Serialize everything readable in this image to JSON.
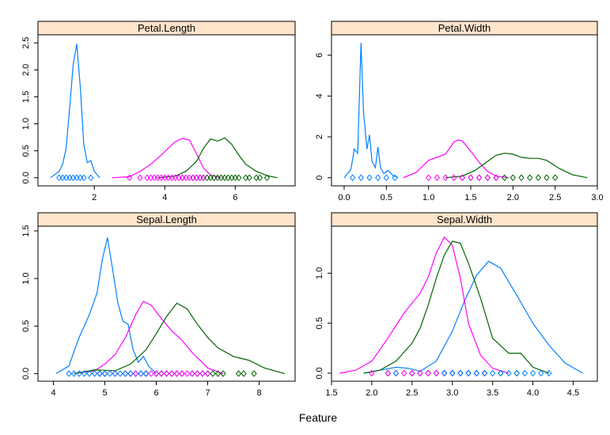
{
  "xlabel": "Feature",
  "colors": {
    "setosa": "#0080ff",
    "versicolor": "#ff00ff",
    "virginica": "#006400",
    "strip_bg": "#ffe5cc"
  },
  "chart_data": [
    {
      "type": "line",
      "title": "Petal.Length",
      "xlim": [
        0.4,
        7.7
      ],
      "ylim": [
        -0.15,
        2.65
      ],
      "xticks": [
        2,
        4,
        6
      ],
      "yticks": [
        0.0,
        0.5,
        1.0,
        1.5,
        2.0,
        2.5
      ],
      "series": [
        {
          "key": "setosa",
          "x": [
            0.75,
            1.0,
            1.1,
            1.2,
            1.3,
            1.4,
            1.5,
            1.6,
            1.7,
            1.8,
            1.9,
            2.0,
            2.15
          ],
          "y": [
            0.0,
            0.12,
            0.25,
            0.55,
            1.3,
            2.1,
            2.48,
            1.7,
            0.62,
            0.28,
            0.32,
            0.12,
            0.0
          ]
        },
        {
          "key": "versicolor",
          "x": [
            2.5,
            3.0,
            3.3,
            3.6,
            3.9,
            4.1,
            4.3,
            4.5,
            4.7,
            4.9,
            5.1,
            5.3,
            5.6
          ],
          "y": [
            0.0,
            0.02,
            0.12,
            0.25,
            0.42,
            0.55,
            0.67,
            0.73,
            0.7,
            0.45,
            0.18,
            0.05,
            0.0
          ]
        },
        {
          "key": "virginica",
          "x": [
            3.8,
            4.3,
            4.6,
            4.9,
            5.1,
            5.3,
            5.5,
            5.7,
            5.9,
            6.1,
            6.3,
            6.6,
            6.9,
            7.2
          ],
          "y": [
            0.0,
            0.03,
            0.12,
            0.3,
            0.55,
            0.72,
            0.68,
            0.74,
            0.62,
            0.42,
            0.25,
            0.12,
            0.04,
            0.0
          ]
        }
      ],
      "points": {
        "setosa": [
          1.0,
          1.1,
          1.2,
          1.3,
          1.4,
          1.5,
          1.6,
          1.7,
          1.9
        ],
        "versicolor": [
          3.0,
          3.3,
          3.5,
          3.6,
          3.7,
          3.8,
          3.9,
          4.0,
          4.1,
          4.2,
          4.3,
          4.4,
          4.5,
          4.6,
          4.7,
          4.8,
          4.9,
          5.0,
          5.1
        ],
        "virginica": [
          4.5,
          4.8,
          4.9,
          5.0,
          5.1,
          5.2,
          5.3,
          5.4,
          5.5,
          5.6,
          5.7,
          5.8,
          5.9,
          6.0,
          6.1,
          6.3,
          6.4,
          6.6,
          6.7,
          6.9
        ]
      }
    },
    {
      "type": "line",
      "title": "Petal.Width",
      "xlim": [
        -0.15,
        3.0
      ],
      "ylim": [
        -0.4,
        7.0
      ],
      "xticks": [
        0.0,
        0.5,
        1.0,
        1.5,
        2.0,
        2.5,
        3.0
      ],
      "yticks": [
        0,
        2,
        4,
        6
      ],
      "series": [
        {
          "key": "setosa",
          "x": [
            0.0,
            0.08,
            0.12,
            0.16,
            0.2,
            0.23,
            0.27,
            0.3,
            0.33,
            0.37,
            0.4,
            0.43,
            0.47,
            0.52,
            0.58,
            0.64
          ],
          "y": [
            0.0,
            0.4,
            1.4,
            1.2,
            6.6,
            3.2,
            1.4,
            2.1,
            0.8,
            0.5,
            1.5,
            0.5,
            0.2,
            0.35,
            0.1,
            0.0
          ]
        },
        {
          "key": "versicolor",
          "x": [
            0.7,
            0.85,
            1.0,
            1.1,
            1.2,
            1.3,
            1.35,
            1.4,
            1.5,
            1.6,
            1.7,
            1.8,
            1.95
          ],
          "y": [
            0.0,
            0.25,
            0.85,
            1.0,
            1.15,
            1.75,
            1.85,
            1.8,
            1.3,
            0.75,
            0.3,
            0.08,
            0.0
          ]
        },
        {
          "key": "virginica",
          "x": [
            1.2,
            1.4,
            1.55,
            1.7,
            1.8,
            1.9,
            2.0,
            2.1,
            2.2,
            2.3,
            2.4,
            2.55,
            2.7,
            2.88
          ],
          "y": [
            0.0,
            0.08,
            0.35,
            0.8,
            1.1,
            1.2,
            1.15,
            1.0,
            0.95,
            0.95,
            0.85,
            0.45,
            0.15,
            0.0
          ]
        }
      ],
      "points": {
        "setosa": [
          0.1,
          0.2,
          0.3,
          0.4,
          0.5,
          0.6
        ],
        "versicolor": [
          1.0,
          1.1,
          1.2,
          1.3,
          1.4,
          1.5,
          1.6,
          1.7,
          1.8
        ],
        "virginica": [
          1.4,
          1.5,
          1.6,
          1.7,
          1.8,
          1.9,
          2.0,
          2.1,
          2.2,
          2.3,
          2.4,
          2.5
        ]
      }
    },
    {
      "type": "line",
      "title": "Sepal.Length",
      "xlim": [
        3.7,
        8.7
      ],
      "ylim": [
        -0.08,
        1.55
      ],
      "xticks": [
        4,
        5,
        6,
        7,
        8
      ],
      "yticks": [
        0.0,
        0.5,
        1.0,
        1.5
      ],
      "series": [
        {
          "key": "setosa",
          "x": [
            4.05,
            4.3,
            4.5,
            4.7,
            4.85,
            4.95,
            5.05,
            5.15,
            5.25,
            5.35,
            5.45,
            5.55,
            5.65,
            5.75,
            5.85,
            6.0
          ],
          "y": [
            0.0,
            0.08,
            0.38,
            0.62,
            0.85,
            1.2,
            1.43,
            1.1,
            0.75,
            0.55,
            0.52,
            0.25,
            0.12,
            0.18,
            0.08,
            0.0
          ]
        },
        {
          "key": "versicolor",
          "x": [
            4.4,
            4.8,
            5.0,
            5.2,
            5.4,
            5.6,
            5.75,
            5.9,
            6.1,
            6.3,
            6.5,
            6.7,
            7.0,
            7.3
          ],
          "y": [
            0.0,
            0.03,
            0.1,
            0.2,
            0.38,
            0.62,
            0.76,
            0.72,
            0.58,
            0.45,
            0.35,
            0.22,
            0.06,
            0.0
          ]
        },
        {
          "key": "virginica",
          "x": [
            4.4,
            4.8,
            5.2,
            5.5,
            5.8,
            6.0,
            6.2,
            6.4,
            6.6,
            6.8,
            7.0,
            7.2,
            7.5,
            7.8,
            8.1,
            8.5
          ],
          "y": [
            0.0,
            0.04,
            0.03,
            0.1,
            0.25,
            0.42,
            0.6,
            0.74,
            0.68,
            0.52,
            0.38,
            0.27,
            0.18,
            0.14,
            0.06,
            0.0
          ]
        }
      ],
      "points": {
        "setosa": [
          4.3,
          4.4,
          4.5,
          4.6,
          4.7,
          4.8,
          4.9,
          5.0,
          5.1,
          5.2,
          5.3,
          5.4,
          5.5,
          5.7,
          5.8
        ],
        "versicolor": [
          4.9,
          5.0,
          5.2,
          5.4,
          5.5,
          5.6,
          5.7,
          5.8,
          5.9,
          6.0,
          6.1,
          6.2,
          6.3,
          6.4,
          6.5,
          6.6,
          6.7,
          6.8,
          6.9,
          7.0
        ],
        "virginica": [
          4.9,
          5.6,
          5.8,
          6.0,
          6.1,
          6.2,
          6.3,
          6.4,
          6.5,
          6.7,
          6.8,
          6.9,
          7.0,
          7.1,
          7.2,
          7.3,
          7.6,
          7.7,
          7.9
        ]
      }
    },
    {
      "type": "line",
      "title": "Sepal.Width",
      "xlim": [
        1.5,
        4.8
      ],
      "ylim": [
        -0.08,
        1.47
      ],
      "xticks": [
        1.5,
        2.0,
        2.5,
        3.0,
        3.5,
        4.0,
        4.5
      ],
      "yticks": [
        0.0,
        0.5,
        1.0
      ],
      "series": [
        {
          "key": "setosa",
          "x": [
            1.9,
            2.1,
            2.3,
            2.45,
            2.6,
            2.8,
            3.0,
            3.15,
            3.3,
            3.45,
            3.6,
            3.8,
            4.0,
            4.2,
            4.4,
            4.62
          ],
          "y": [
            0.0,
            0.03,
            0.06,
            0.05,
            0.02,
            0.12,
            0.42,
            0.72,
            0.98,
            1.12,
            1.05,
            0.78,
            0.5,
            0.28,
            0.1,
            0.0
          ]
        },
        {
          "key": "versicolor",
          "x": [
            1.6,
            1.8,
            2.0,
            2.2,
            2.4,
            2.6,
            2.7,
            2.8,
            2.9,
            3.0,
            3.1,
            3.2,
            3.35,
            3.5,
            3.7
          ],
          "y": [
            0.0,
            0.03,
            0.12,
            0.35,
            0.6,
            0.8,
            0.96,
            1.2,
            1.36,
            1.28,
            0.95,
            0.5,
            0.18,
            0.05,
            0.0
          ]
        },
        {
          "key": "virginica",
          "x": [
            1.9,
            2.1,
            2.3,
            2.5,
            2.6,
            2.7,
            2.8,
            2.9,
            3.0,
            3.1,
            3.2,
            3.35,
            3.5,
            3.7,
            3.85,
            4.0,
            4.2
          ],
          "y": [
            0.0,
            0.03,
            0.12,
            0.3,
            0.45,
            0.68,
            0.95,
            1.18,
            1.32,
            1.3,
            1.1,
            0.75,
            0.35,
            0.2,
            0.2,
            0.06,
            0.0
          ]
        }
      ],
      "points": {
        "setosa": [
          2.3,
          2.9,
          3.0,
          3.1,
          3.2,
          3.3,
          3.4,
          3.5,
          3.6,
          3.7,
          3.8,
          3.9,
          4.0,
          4.1,
          4.2
        ],
        "versicolor": [
          2.0,
          2.2,
          2.3,
          2.4,
          2.5,
          2.6,
          2.7,
          2.8,
          2.9,
          3.0,
          3.1,
          3.2,
          3.3,
          3.4
        ],
        "virginica": [
          2.2,
          2.5,
          2.6,
          2.7,
          2.8,
          2.9,
          3.0,
          3.1,
          3.2,
          3.3,
          3.4,
          3.6,
          3.8
        ]
      }
    }
  ]
}
